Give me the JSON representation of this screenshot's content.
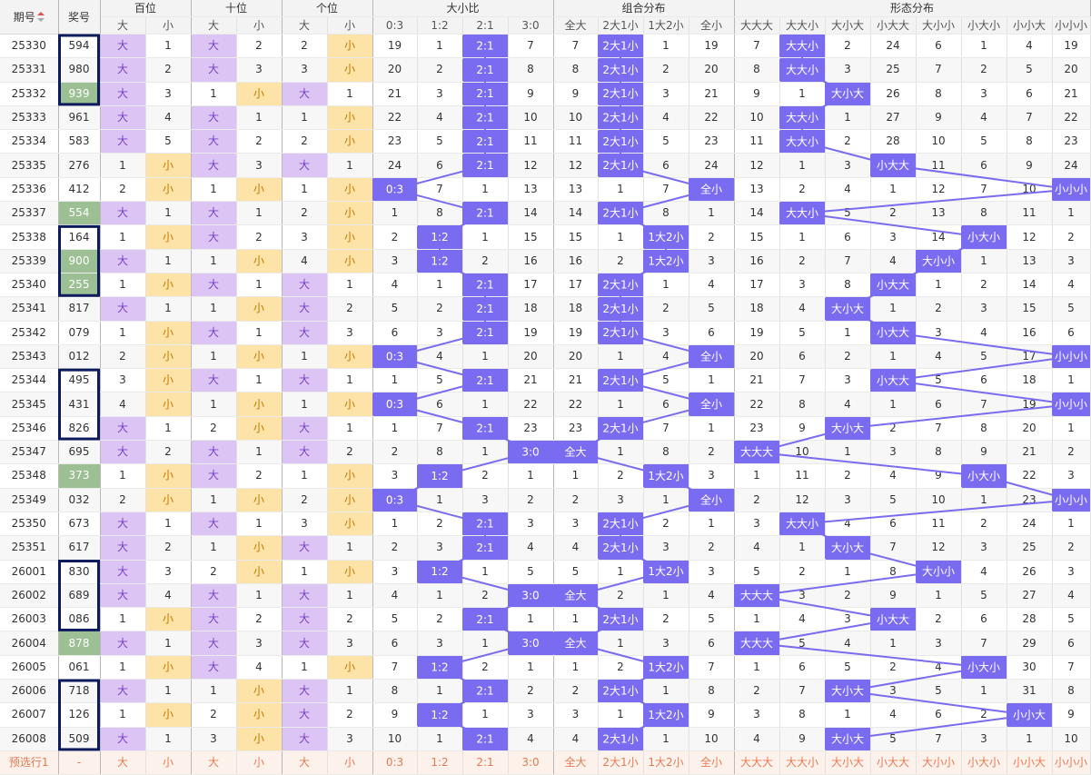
{
  "headers": {
    "issue": "期号",
    "prize": "奖号",
    "groups": [
      "百位",
      "十位",
      "个位",
      "大小比",
      "组合分布",
      "形态分布"
    ],
    "bs": [
      "大",
      "小"
    ],
    "ratio": [
      "0:3",
      "1:2",
      "2:1",
      "3:0"
    ],
    "combo": [
      "全大",
      "2大1小",
      "1大2小",
      "全小"
    ],
    "shape": [
      "大大大",
      "大大小",
      "大小大",
      "小大大",
      "大小小",
      "小大小",
      "小小大",
      "小小小"
    ]
  },
  "rows": [
    {
      "issue": "25330",
      "prize": "594",
      "b": [
        1,
        1,
        4
      ],
      "bs": [
        "大",
        "小"
      ],
      "h": [
        "大",
        1
      ],
      "t": [
        "大",
        2
      ],
      "o": [
        2,
        "小"
      ],
      "ratio": [
        19,
        1,
        "2:1",
        7
      ],
      "combo": [
        7,
        "2大1小",
        1,
        19
      ],
      "shape": [
        7,
        "大大小",
        2,
        24,
        6,
        1,
        4,
        19
      ]
    },
    {
      "issue": "25331",
      "prize": "980",
      "h": [
        "大",
        2
      ],
      "t": [
        "大",
        3
      ],
      "o": [
        3,
        "小"
      ],
      "ratio": [
        20,
        2,
        "2:1",
        8
      ],
      "combo": [
        8,
        "2大1小",
        2,
        20
      ],
      "shape": [
        8,
        "大大小",
        3,
        25,
        7,
        2,
        5,
        20
      ]
    },
    {
      "issue": "25332",
      "prize": "939",
      "h": [
        "大",
        3
      ],
      "t": [
        1,
        "小"
      ],
      "o": [
        "大",
        1
      ],
      "ratio": [
        21,
        3,
        "2:1",
        9
      ],
      "combo": [
        9,
        "2大1小",
        3,
        21
      ],
      "shape": [
        9,
        1,
        "大小大",
        26,
        8,
        3,
        6,
        21
      ]
    },
    {
      "issue": "25333",
      "prize": "961",
      "h": [
        "大",
        4
      ],
      "t": [
        "大",
        1
      ],
      "o": [
        1,
        "小"
      ],
      "ratio": [
        22,
        4,
        "2:1",
        10
      ],
      "combo": [
        10,
        "2大1小",
        4,
        22
      ],
      "shape": [
        10,
        "大大小",
        1,
        27,
        9,
        4,
        7,
        22
      ]
    },
    {
      "issue": "25334",
      "prize": "583",
      "h": [
        "大",
        5
      ],
      "t": [
        "大",
        2
      ],
      "o": [
        2,
        "小"
      ],
      "ratio": [
        23,
        5,
        "2:1",
        11
      ],
      "combo": [
        11,
        "2大1小",
        5,
        23
      ],
      "shape": [
        11,
        "大大小",
        2,
        28,
        10,
        5,
        8,
        23
      ]
    },
    {
      "issue": "25335",
      "prize": "276",
      "h": [
        1,
        "小"
      ],
      "t": [
        "大",
        3
      ],
      "o": [
        "大",
        1
      ],
      "ratio": [
        24,
        6,
        "2:1",
        12
      ],
      "combo": [
        12,
        "2大1小",
        6,
        24
      ],
      "shape": [
        12,
        1,
        3,
        "小大大",
        11,
        6,
        9,
        24
      ]
    },
    {
      "issue": "25336",
      "prize": "412",
      "h": [
        2,
        "小"
      ],
      "t": [
        1,
        "小"
      ],
      "o": [
        1,
        "小"
      ],
      "ratio": [
        "0:3",
        7,
        1,
        13
      ],
      "combo": [
        13,
        1,
        7,
        "全小"
      ],
      "shape": [
        13,
        2,
        4,
        1,
        12,
        7,
        10,
        "小小小"
      ]
    },
    {
      "issue": "25337",
      "prize": "554",
      "h": [
        "大",
        1
      ],
      "t": [
        "大",
        1
      ],
      "o": [
        2,
        "小"
      ],
      "ratio": [
        1,
        8,
        "2:1",
        14
      ],
      "combo": [
        14,
        "2大1小",
        8,
        1
      ],
      "shape": [
        14,
        "大大小",
        5,
        2,
        13,
        8,
        11,
        1
      ]
    },
    {
      "issue": "25338",
      "prize": "164",
      "h": [
        1,
        "小"
      ],
      "t": [
        "大",
        2
      ],
      "o": [
        3,
        "小"
      ],
      "ratio": [
        2,
        "1:2",
        1,
        15
      ],
      "combo": [
        15,
        1,
        "1大2小",
        2
      ],
      "shape": [
        15,
        1,
        6,
        3,
        14,
        "小大小",
        12,
        2
      ]
    },
    {
      "issue": "25339",
      "prize": "900",
      "h": [
        "大",
        1
      ],
      "t": [
        1,
        "小"
      ],
      "o": [
        4,
        "小"
      ],
      "ratio": [
        3,
        "1:2",
        2,
        16
      ],
      "combo": [
        16,
        2,
        "1大2小",
        3
      ],
      "shape": [
        16,
        2,
        7,
        4,
        "大小小",
        1,
        13,
        3
      ]
    },
    {
      "issue": "25340",
      "prize": "255",
      "h": [
        1,
        "小"
      ],
      "t": [
        "大",
        1
      ],
      "o": [
        "大",
        1
      ],
      "ratio": [
        4,
        1,
        "2:1",
        17
      ],
      "combo": [
        17,
        "2大1小",
        1,
        4
      ],
      "shape": [
        17,
        3,
        8,
        "小大大",
        1,
        2,
        14,
        4
      ]
    },
    {
      "issue": "25341",
      "prize": "817",
      "h": [
        "大",
        1
      ],
      "t": [
        1,
        "小"
      ],
      "o": [
        "大",
        2
      ],
      "ratio": [
        5,
        2,
        "2:1",
        18
      ],
      "combo": [
        18,
        "2大1小",
        2,
        5
      ],
      "shape": [
        18,
        4,
        "大小大",
        1,
        2,
        3,
        15,
        5
      ]
    },
    {
      "issue": "25342",
      "prize": "079",
      "h": [
        1,
        "小"
      ],
      "t": [
        "大",
        1
      ],
      "o": [
        "大",
        3
      ],
      "ratio": [
        6,
        3,
        "2:1",
        19
      ],
      "combo": [
        19,
        "2大1小",
        3,
        6
      ],
      "shape": [
        19,
        5,
        1,
        "小大大",
        3,
        4,
        16,
        6
      ]
    },
    {
      "issue": "25343",
      "prize": "012",
      "h": [
        2,
        "小"
      ],
      "t": [
        1,
        "小"
      ],
      "o": [
        1,
        "小"
      ],
      "ratio": [
        "0:3",
        4,
        1,
        20
      ],
      "combo": [
        20,
        1,
        4,
        "全小"
      ],
      "shape": [
        20,
        6,
        2,
        1,
        4,
        5,
        17,
        "小小小"
      ]
    },
    {
      "issue": "25344",
      "prize": "495",
      "h": [
        3,
        "小"
      ],
      "t": [
        "大",
        1
      ],
      "o": [
        "大",
        1
      ],
      "ratio": [
        1,
        5,
        "2:1",
        21
      ],
      "combo": [
        21,
        "2大1小",
        5,
        1
      ],
      "shape": [
        21,
        7,
        3,
        "小大大",
        5,
        6,
        18,
        1
      ]
    },
    {
      "issue": "25345",
      "prize": "431",
      "h": [
        4,
        "小"
      ],
      "t": [
        1,
        "小"
      ],
      "o": [
        1,
        "小"
      ],
      "ratio": [
        "0:3",
        6,
        1,
        22
      ],
      "combo": [
        22,
        1,
        6,
        "全小"
      ],
      "shape": [
        22,
        8,
        4,
        1,
        6,
        7,
        19,
        "小小小"
      ]
    },
    {
      "issue": "25346",
      "prize": "826",
      "h": [
        "大",
        1
      ],
      "t": [
        2,
        "小"
      ],
      "o": [
        "大",
        1
      ],
      "ratio": [
        1,
        7,
        "2:1",
        23
      ],
      "combo": [
        23,
        "2大1小",
        7,
        1
      ],
      "shape": [
        23,
        9,
        "大小大",
        2,
        7,
        8,
        20,
        1
      ]
    },
    {
      "issue": "25347",
      "prize": "695",
      "h": [
        "大",
        2
      ],
      "t": [
        "大",
        1
      ],
      "o": [
        "大",
        2
      ],
      "ratio": [
        2,
        8,
        1,
        "3:0"
      ],
      "combo": [
        "全大",
        1,
        8,
        2
      ],
      "shape": [
        "大大大",
        10,
        1,
        3,
        8,
        9,
        21,
        2
      ]
    },
    {
      "issue": "25348",
      "prize": "373",
      "h": [
        1,
        "小"
      ],
      "t": [
        "大",
        2
      ],
      "o": [
        1,
        "小"
      ],
      "ratio": [
        3,
        "1:2",
        2,
        1
      ],
      "combo": [
        1,
        2,
        "1大2小",
        3
      ],
      "shape": [
        1,
        11,
        2,
        4,
        9,
        "小大小",
        22,
        3
      ]
    },
    {
      "issue": "25349",
      "prize": "032",
      "h": [
        2,
        "小"
      ],
      "t": [
        1,
        "小"
      ],
      "o": [
        2,
        "小"
      ],
      "ratio": [
        "0:3",
        1,
        3,
        2
      ],
      "combo": [
        2,
        3,
        1,
        "全小"
      ],
      "shape": [
        2,
        12,
        3,
        5,
        10,
        1,
        23,
        "小小小"
      ]
    },
    {
      "issue": "25350",
      "prize": "673",
      "h": [
        "大",
        1
      ],
      "t": [
        "大",
        1
      ],
      "o": [
        3,
        "小"
      ],
      "ratio": [
        1,
        2,
        "2:1",
        3
      ],
      "combo": [
        3,
        "2大1小",
        2,
        1
      ],
      "shape": [
        3,
        "大大小",
        4,
        6,
        11,
        2,
        24,
        1
      ]
    },
    {
      "issue": "25351",
      "prize": "617",
      "h": [
        "大",
        2
      ],
      "t": [
        1,
        "小"
      ],
      "o": [
        "大",
        1
      ],
      "ratio": [
        2,
        3,
        "2:1",
        4
      ],
      "combo": [
        4,
        "2大1小",
        3,
        2
      ],
      "shape": [
        4,
        1,
        "大小大",
        7,
        12,
        3,
        25,
        2
      ]
    },
    {
      "issue": "26001",
      "prize": "830",
      "h": [
        "大",
        3
      ],
      "t": [
        2,
        "小"
      ],
      "o": [
        1,
        "小"
      ],
      "ratio": [
        3,
        "1:2",
        1,
        5
      ],
      "combo": [
        5,
        1,
        "1大2小",
        3
      ],
      "shape": [
        5,
        2,
        1,
        8,
        "大小小",
        4,
        26,
        3
      ]
    },
    {
      "issue": "26002",
      "prize": "689",
      "h": [
        "大",
        4
      ],
      "t": [
        "大",
        1
      ],
      "o": [
        "大",
        1
      ],
      "ratio": [
        4,
        1,
        2,
        "3:0"
      ],
      "combo": [
        "全大",
        2,
        1,
        4
      ],
      "shape": [
        "大大大",
        3,
        2,
        9,
        1,
        5,
        27,
        4
      ]
    },
    {
      "issue": "26003",
      "prize": "086",
      "h": [
        1,
        "小"
      ],
      "t": [
        "大",
        2
      ],
      "o": [
        "大",
        2
      ],
      "ratio": [
        5,
        2,
        "2:1",
        1
      ],
      "combo": [
        1,
        "2大1小",
        2,
        5
      ],
      "shape": [
        1,
        4,
        3,
        "小大大",
        2,
        6,
        28,
        5
      ]
    },
    {
      "issue": "26004",
      "prize": "878",
      "h": [
        "大",
        1
      ],
      "t": [
        "大",
        3
      ],
      "o": [
        "大",
        3
      ],
      "ratio": [
        6,
        3,
        1,
        "3:0"
      ],
      "combo": [
        "全大",
        1,
        3,
        6
      ],
      "shape": [
        "大大大",
        5,
        4,
        1,
        3,
        7,
        29,
        6
      ]
    },
    {
      "issue": "26005",
      "prize": "061",
      "h": [
        1,
        "小"
      ],
      "t": [
        "大",
        4
      ],
      "o": [
        1,
        "小"
      ],
      "ratio": [
        7,
        "1:2",
        2,
        1
      ],
      "combo": [
        1,
        2,
        "1大2小",
        7
      ],
      "shape": [
        1,
        6,
        5,
        2,
        4,
        "小大小",
        30,
        7
      ]
    },
    {
      "issue": "26006",
      "prize": "718",
      "h": [
        "大",
        1
      ],
      "t": [
        1,
        "小"
      ],
      "o": [
        "大",
        1
      ],
      "ratio": [
        8,
        1,
        "2:1",
        2
      ],
      "combo": [
        2,
        "2大1小",
        1,
        8
      ],
      "shape": [
        2,
        7,
        "大小大",
        3,
        5,
        1,
        31,
        8
      ]
    },
    {
      "issue": "26007",
      "prize": "126",
      "h": [
        1,
        "小"
      ],
      "t": [
        2,
        "小"
      ],
      "o": [
        "大",
        2
      ],
      "ratio": [
        9,
        "1:2",
        1,
        3
      ],
      "combo": [
        3,
        1,
        "1大2小",
        9
      ],
      "shape": [
        3,
        8,
        1,
        4,
        6,
        2,
        "小小大",
        9
      ]
    },
    {
      "issue": "26008",
      "prize": "509",
      "h": [
        "大",
        1
      ],
      "t": [
        3,
        "小"
      ],
      "o": [
        "大",
        3
      ],
      "ratio": [
        10,
        1,
        "2:1",
        4
      ],
      "combo": [
        4,
        "2大1小",
        1,
        10
      ],
      "shape": [
        4,
        9,
        "大小大",
        5,
        7,
        3,
        1,
        10
      ]
    }
  ],
  "greenPrize": [
    "25332",
    "25337",
    "25339",
    "25340",
    "25348",
    "26004"
  ],
  "boxedRanges": [
    [
      0,
      2
    ],
    [
      8,
      10
    ],
    [
      14,
      16
    ],
    [
      22,
      24
    ],
    [
      27,
      29
    ]
  ],
  "preselect": {
    "label": "预选行1",
    "prize": "-",
    "cells": [
      "大",
      "小",
      "大",
      "小",
      "大",
      "小",
      "0:3",
      "1:2",
      "2:1",
      "3:0",
      "全大",
      "2大1小",
      "1大2小",
      "全小",
      "大大大",
      "大大小",
      "大小大",
      "小大大",
      "大小小",
      "小大小",
      "小小大",
      "小小小"
    ]
  },
  "colors": {
    "accent": "#7a6cf0",
    "big": "#dcc5f5",
    "small": "#fde3a8",
    "green": "#9cbf94",
    "box": "#0d1a5c",
    "line": "#7a6cf0"
  }
}
